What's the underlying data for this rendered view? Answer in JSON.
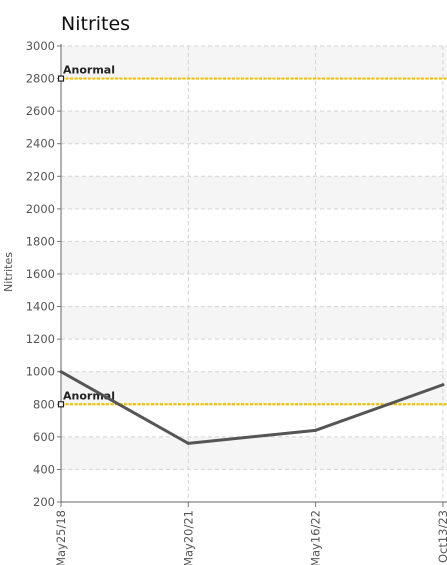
{
  "chart_data": {
    "type": "line",
    "title": "Nitrites",
    "xlabel": "",
    "ylabel": "Nitrites",
    "ylim": [
      200,
      3000
    ],
    "yticks": [
      200,
      400,
      600,
      800,
      1000,
      1200,
      1400,
      1600,
      1800,
      2000,
      2200,
      2400,
      2600,
      2800,
      3000
    ],
    "categories": [
      "May25/18",
      "May20/21",
      "May16/22",
      "Oct13/23"
    ],
    "series": [
      {
        "values": [
          1000,
          560,
          640,
          920
        ]
      }
    ],
    "thresholds": [
      {
        "label": "Anormal",
        "value": 2800
      },
      {
        "label": "Anormal",
        "value": 800
      }
    ],
    "grid": true,
    "colors": {
      "line": "#555555",
      "threshold": "#f2c200",
      "band": "#f5f5f5",
      "grid": "#d4d4d4"
    }
  }
}
